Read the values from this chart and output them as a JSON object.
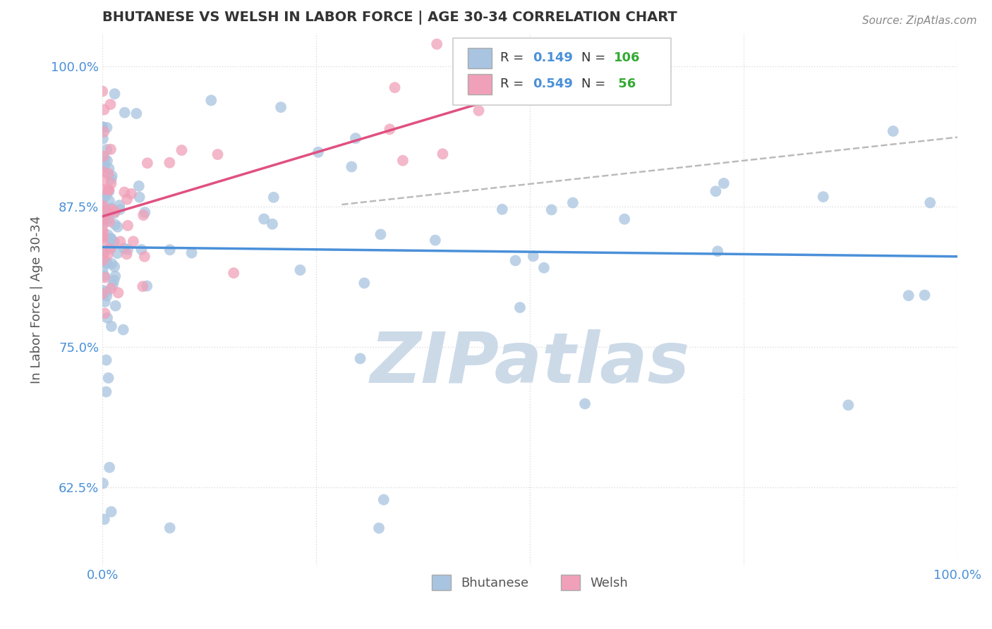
{
  "title": "BHUTANESE VS WELSH IN LABOR FORCE | AGE 30-34 CORRELATION CHART",
  "source_text": "Source: ZipAtlas.com",
  "ylabel": "In Labor Force | Age 30-34",
  "xlim": [
    0.0,
    1.0
  ],
  "ylim": [
    0.555,
    1.03
  ],
  "yticks": [
    0.625,
    0.75,
    0.875,
    1.0
  ],
  "yticklabels": [
    "62.5%",
    "75.0%",
    "87.5%",
    "100.0%"
  ],
  "xticks": [
    0.0,
    0.25,
    0.5,
    0.75,
    1.0
  ],
  "xticklabels": [
    "0.0%",
    "",
    "",
    "",
    "100.0%"
  ],
  "bhutanese_R": 0.149,
  "bhutanese_N": 106,
  "welsh_R": 0.549,
  "welsh_N": 56,
  "bhutanese_color": "#a8c4e0",
  "welsh_color": "#f0a0b8",
  "bhutanese_line_color": "#4a90d9",
  "welsh_line_color": "#e05080",
  "ref_line_color": "#aaaaaa",
  "watermark_color": "#ccdae8",
  "background_color": "#ffffff",
  "title_color": "#333333",
  "axis_label_color": "#555555",
  "tick_label_color": "#4a90d9",
  "legend_R_color": "#4a90d9",
  "legend_N_color": "#33aa33",
  "grid_color": "#dddddd",
  "source_color": "#888888"
}
